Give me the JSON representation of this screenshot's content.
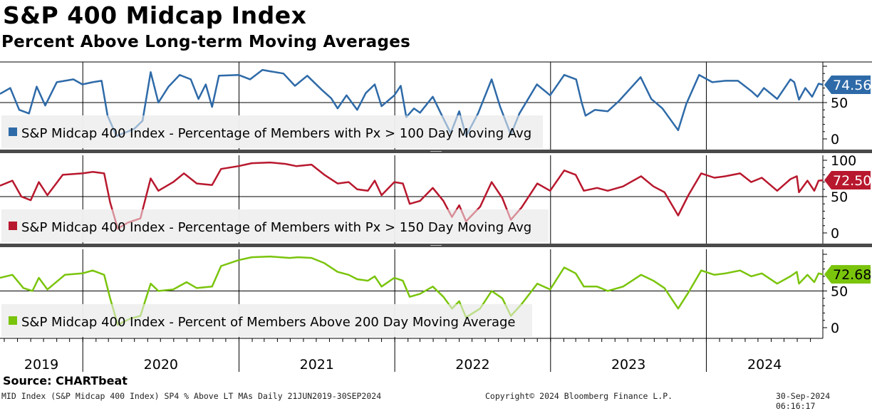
{
  "header": {
    "title": "S&P 400 Midcap Index",
    "subtitle": "Percent Above Long-term Moving Averages"
  },
  "footer": {
    "source": "Source: CHARTbeat",
    "description": "MID Index (S&P Midcap 400 Index) SP4 % Above LT MAs  Daily 21JUN2019-30SEP2024",
    "copyright": "Copyright© 2024 Bloomberg Finance L.P.",
    "timestamp": "30-Sep-2024 06:16:17"
  },
  "chart_data": [
    {
      "type": "line",
      "series": [
        {
          "name": "S&P Midcap 400 Index - Percentage of Members with Px > 100 Day Moving Avg",
          "color": "#2e6aa8",
          "last_value": "74.56",
          "points": [
            [
              "2019-06-21",
              62
            ],
            [
              "2019-07-15",
              70
            ],
            [
              "2019-08-05",
              40
            ],
            [
              "2019-08-28",
              35
            ],
            [
              "2019-09-15",
              72
            ],
            [
              "2019-10-05",
              46
            ],
            [
              "2019-11-01",
              78
            ],
            [
              "2019-12-10",
              82
            ],
            [
              "2019-12-31",
              75
            ],
            [
              "2020-01-24",
              78
            ],
            [
              "2020-02-14",
              80
            ],
            [
              "2020-02-28",
              32
            ],
            [
              "2020-03-20",
              4
            ],
            [
              "2020-04-15",
              10
            ],
            [
              "2020-05-01",
              14
            ],
            [
              "2020-05-20",
              25
            ],
            [
              "2020-06-08",
              92
            ],
            [
              "2020-06-26",
              50
            ],
            [
              "2020-07-20",
              72
            ],
            [
              "2020-08-15",
              88
            ],
            [
              "2020-09-10",
              82
            ],
            [
              "2020-09-28",
              55
            ],
            [
              "2020-10-15",
              75
            ],
            [
              "2020-10-30",
              44
            ],
            [
              "2020-11-15",
              87
            ],
            [
              "2020-12-31",
              88
            ],
            [
              "2021-01-27",
              82
            ],
            [
              "2021-02-25",
              95
            ],
            [
              "2021-03-15",
              93
            ],
            [
              "2021-04-15",
              90
            ],
            [
              "2021-05-12",
              73
            ],
            [
              "2021-06-10",
              87
            ],
            [
              "2021-07-15",
              67
            ],
            [
              "2021-08-05",
              56
            ],
            [
              "2021-08-20",
              42
            ],
            [
              "2021-09-10",
              60
            ],
            [
              "2021-10-05",
              40
            ],
            [
              "2021-10-25",
              63
            ],
            [
              "2021-11-15",
              75
            ],
            [
              "2021-12-01",
              45
            ],
            [
              "2021-12-31",
              60
            ],
            [
              "2022-01-15",
              73
            ],
            [
              "2022-01-28",
              30
            ],
            [
              "2022-02-15",
              42
            ],
            [
              "2022-03-01",
              36
            ],
            [
              "2022-03-31",
              58
            ],
            [
              "2022-04-20",
              34
            ],
            [
              "2022-05-12",
              8
            ],
            [
              "2022-06-01",
              38
            ],
            [
              "2022-06-17",
              4
            ],
            [
              "2022-07-15",
              35
            ],
            [
              "2022-08-16",
              82
            ],
            [
              "2022-09-05",
              44
            ],
            [
              "2022-09-30",
              6
            ],
            [
              "2022-10-20",
              35
            ],
            [
              "2022-11-30",
              75
            ],
            [
              "2022-12-31",
              60
            ],
            [
              "2023-02-02",
              88
            ],
            [
              "2023-03-02",
              82
            ],
            [
              "2023-03-15",
              50
            ],
            [
              "2023-03-24",
              32
            ],
            [
              "2023-04-15",
              40
            ],
            [
              "2023-05-15",
              38
            ],
            [
              "2023-06-10",
              52
            ],
            [
              "2023-07-31",
              85
            ],
            [
              "2023-08-25",
              55
            ],
            [
              "2023-09-20",
              42
            ],
            [
              "2023-10-27",
              12
            ],
            [
              "2023-11-15",
              48
            ],
            [
              "2023-12-15",
              88
            ],
            [
              "2024-01-15",
              78
            ],
            [
              "2024-02-15",
              80
            ],
            [
              "2024-03-15",
              80
            ],
            [
              "2024-04-15",
              66
            ],
            [
              "2024-04-30",
              58
            ],
            [
              "2024-05-15",
              70
            ],
            [
              "2024-06-15",
              55
            ],
            [
              "2024-07-16",
              82
            ],
            [
              "2024-07-25",
              78
            ],
            [
              "2024-08-05",
              54
            ],
            [
              "2024-08-20",
              70
            ],
            [
              "2024-09-05",
              58
            ],
            [
              "2024-09-20",
              76
            ],
            [
              "2024-09-30",
              74.56
            ]
          ]
        }
      ],
      "y_ticks": [
        "50",
        "0"
      ],
      "ylim": [
        0,
        100
      ]
    },
    {
      "type": "line",
      "series": [
        {
          "name": "S&P Midcap 400 Index - Percentage of Members with Px > 150 Day Moving Avg",
          "color": "#b8182e",
          "last_value": "72.50",
          "points": [
            [
              "2019-06-21",
              65
            ],
            [
              "2019-07-20",
              72
            ],
            [
              "2019-08-10",
              50
            ],
            [
              "2019-09-01",
              45
            ],
            [
              "2019-09-20",
              70
            ],
            [
              "2019-10-10",
              52
            ],
            [
              "2019-11-15",
              80
            ],
            [
              "2019-12-31",
              82
            ],
            [
              "2020-01-24",
              84
            ],
            [
              "2020-02-20",
              82
            ],
            [
              "2020-03-05",
              42
            ],
            [
              "2020-03-23",
              6
            ],
            [
              "2020-04-15",
              14
            ],
            [
              "2020-05-15",
              20
            ],
            [
              "2020-06-08",
              75
            ],
            [
              "2020-06-26",
              58
            ],
            [
              "2020-07-31",
              70
            ],
            [
              "2020-08-25",
              82
            ],
            [
              "2020-09-24",
              68
            ],
            [
              "2020-10-30",
              66
            ],
            [
              "2020-11-20",
              88
            ],
            [
              "2020-12-31",
              92
            ],
            [
              "2021-01-31",
              96
            ],
            [
              "2021-03-15",
              97
            ],
            [
              "2021-04-20",
              95
            ],
            [
              "2021-05-15",
              92
            ],
            [
              "2021-06-20",
              94
            ],
            [
              "2021-07-20",
              80
            ],
            [
              "2021-08-20",
              68
            ],
            [
              "2021-09-15",
              70
            ],
            [
              "2021-10-05",
              60
            ],
            [
              "2021-10-30",
              58
            ],
            [
              "2021-11-15",
              72
            ],
            [
              "2021-12-01",
              52
            ],
            [
              "2021-12-31",
              70
            ],
            [
              "2022-01-20",
              68
            ],
            [
              "2022-02-05",
              40
            ],
            [
              "2022-03-01",
              44
            ],
            [
              "2022-03-31",
              62
            ],
            [
              "2022-04-25",
              44
            ],
            [
              "2022-05-15",
              22
            ],
            [
              "2022-06-01",
              38
            ],
            [
              "2022-06-17",
              16
            ],
            [
              "2022-07-20",
              36
            ],
            [
              "2022-08-16",
              70
            ],
            [
              "2022-09-10",
              48
            ],
            [
              "2022-09-30",
              18
            ],
            [
              "2022-10-25",
              35
            ],
            [
              "2022-12-01",
              68
            ],
            [
              "2022-12-31",
              58
            ],
            [
              "2023-02-02",
              86
            ],
            [
              "2023-03-01",
              80
            ],
            [
              "2023-03-20",
              58
            ],
            [
              "2023-04-20",
              62
            ],
            [
              "2023-05-15",
              58
            ],
            [
              "2023-06-20",
              64
            ],
            [
              "2023-08-01",
              78
            ],
            [
              "2023-08-30",
              64
            ],
            [
              "2023-09-25",
              56
            ],
            [
              "2023-10-27",
              24
            ],
            [
              "2023-11-20",
              52
            ],
            [
              "2023-12-20",
              82
            ],
            [
              "2024-01-20",
              76
            ],
            [
              "2024-02-15",
              78
            ],
            [
              "2024-03-20",
              82
            ],
            [
              "2024-04-15",
              70
            ],
            [
              "2024-05-10",
              76
            ],
            [
              "2024-06-15",
              58
            ],
            [
              "2024-07-16",
              74
            ],
            [
              "2024-07-31",
              78
            ],
            [
              "2024-08-05",
              56
            ],
            [
              "2024-08-25",
              72
            ],
            [
              "2024-09-10",
              58
            ],
            [
              "2024-09-20",
              72
            ],
            [
              "2024-09-30",
              72.5
            ]
          ]
        }
      ],
      "y_ticks": [
        "100",
        "50",
        "0"
      ],
      "ylim": [
        0,
        100
      ]
    },
    {
      "type": "line",
      "series": [
        {
          "name": "S&P Midcap 400 Index - Percent of Members Above 200 Day Moving Average",
          "color": "#7ac40c",
          "last_value": "72.68",
          "points": [
            [
              "2019-06-21",
              68
            ],
            [
              "2019-07-20",
              72
            ],
            [
              "2019-08-15",
              54
            ],
            [
              "2019-09-05",
              50
            ],
            [
              "2019-09-20",
              68
            ],
            [
              "2019-10-10",
              52
            ],
            [
              "2019-11-20",
              72
            ],
            [
              "2019-12-31",
              74
            ],
            [
              "2020-01-24",
              78
            ],
            [
              "2020-02-20",
              72
            ],
            [
              "2020-03-05",
              40
            ],
            [
              "2020-03-23",
              4
            ],
            [
              "2020-04-20",
              12
            ],
            [
              "2020-05-15",
              16
            ],
            [
              "2020-06-08",
              60
            ],
            [
              "2020-06-26",
              50
            ],
            [
              "2020-07-31",
              52
            ],
            [
              "2020-08-31",
              62
            ],
            [
              "2020-09-24",
              54
            ],
            [
              "2020-10-30",
              56
            ],
            [
              "2020-11-20",
              84
            ],
            [
              "2020-12-31",
              92
            ],
            [
              "2021-01-31",
              96
            ],
            [
              "2021-03-15",
              97
            ],
            [
              "2021-04-30",
              95
            ],
            [
              "2021-05-20",
              96
            ],
            [
              "2021-06-20",
              95
            ],
            [
              "2021-07-20",
              88
            ],
            [
              "2021-08-20",
              76
            ],
            [
              "2021-09-15",
              72
            ],
            [
              "2021-10-05",
              66
            ],
            [
              "2021-10-30",
              64
            ],
            [
              "2021-11-15",
              70
            ],
            [
              "2021-12-01",
              56
            ],
            [
              "2021-12-31",
              68
            ],
            [
              "2022-01-20",
              64
            ],
            [
              "2022-02-05",
              42
            ],
            [
              "2022-03-01",
              46
            ],
            [
              "2022-03-31",
              56
            ],
            [
              "2022-04-25",
              42
            ],
            [
              "2022-05-15",
              26
            ],
            [
              "2022-06-01",
              36
            ],
            [
              "2022-06-17",
              14
            ],
            [
              "2022-07-20",
              26
            ],
            [
              "2022-08-16",
              50
            ],
            [
              "2022-09-10",
              40
            ],
            [
              "2022-09-30",
              16
            ],
            [
              "2022-10-25",
              32
            ],
            [
              "2022-12-01",
              60
            ],
            [
              "2022-12-31",
              52
            ],
            [
              "2023-02-02",
              82
            ],
            [
              "2023-03-01",
              74
            ],
            [
              "2023-03-20",
              56
            ],
            [
              "2023-04-20",
              56
            ],
            [
              "2023-05-15",
              50
            ],
            [
              "2023-06-20",
              56
            ],
            [
              "2023-08-01",
              72
            ],
            [
              "2023-08-30",
              64
            ],
            [
              "2023-09-25",
              54
            ],
            [
              "2023-10-27",
              26
            ],
            [
              "2023-11-20",
              48
            ],
            [
              "2023-12-20",
              78
            ],
            [
              "2024-01-20",
              72
            ],
            [
              "2024-02-15",
              74
            ],
            [
              "2024-03-20",
              78
            ],
            [
              "2024-04-15",
              70
            ],
            [
              "2024-05-10",
              74
            ],
            [
              "2024-06-15",
              60
            ],
            [
              "2024-07-16",
              70
            ],
            [
              "2024-07-31",
              76
            ],
            [
              "2024-08-05",
              60
            ],
            [
              "2024-08-25",
              72
            ],
            [
              "2024-09-10",
              62
            ],
            [
              "2024-09-20",
              74
            ],
            [
              "2024-09-30",
              72.68
            ]
          ]
        }
      ],
      "y_ticks": [
        "50",
        "0"
      ],
      "ylim": [
        0,
        100
      ]
    }
  ],
  "x_axis": {
    "labels": [
      "2019",
      "2020",
      "2021",
      "2022",
      "2023",
      "2024"
    ],
    "range": [
      "2019-06-21",
      "2024-09-30"
    ]
  }
}
